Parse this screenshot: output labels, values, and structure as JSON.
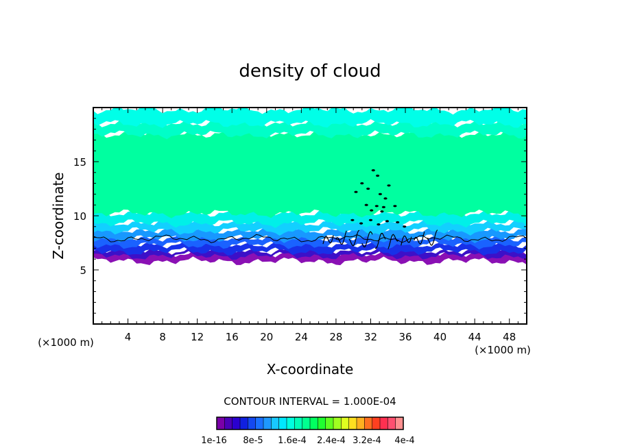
{
  "chart_data": {
    "type": "heatmap",
    "title": "density of cloud",
    "xlabel": "X-coordinate",
    "ylabel": "Z-coordinate",
    "x_unit": "(×1000 m)",
    "xlim": [
      0,
      50
    ],
    "ylim": [
      0,
      20
    ],
    "x_ticks": [
      4,
      8,
      12,
      16,
      20,
      24,
      28,
      32,
      36,
      40,
      44,
      48
    ],
    "y_ticks": [
      5,
      10,
      15
    ],
    "contour_interval_text": "CONTOUR INTERVAL = 1.000E-04",
    "legend": {
      "colors": [
        "#7a00a8",
        "#4b00b8",
        "#2a00d0",
        "#1020e0",
        "#1448f0",
        "#1a70ff",
        "#1e98ff",
        "#18c8ff",
        "#00e8ff",
        "#00ffe0",
        "#00ffb8",
        "#00ff90",
        "#00ff60",
        "#20ff30",
        "#60ff20",
        "#a0ff20",
        "#e0ff20",
        "#ffe020",
        "#ffb020",
        "#ff7020",
        "#ff4020",
        "#ff3050",
        "#ff5070",
        "#ff9090"
      ],
      "labels": [
        "1e-16",
        "8e-5",
        "1.6e-4",
        "2.4e-4",
        "3.2e-4",
        "4e-4"
      ]
    },
    "layers": [
      {
        "z_range": [
          5.8,
          6.6
        ],
        "value": "1e-16",
        "color": "#8a10b4"
      },
      {
        "z_range": [
          6.3,
          6.8
        ],
        "value": "3e-5",
        "color": "#3c10c8"
      },
      {
        "z_range": [
          6.7,
          7.4
        ],
        "value": "5e-5",
        "color": "#1830e8"
      },
      {
        "z_range": [
          7.3,
          8.0
        ],
        "value": "7e-5",
        "color": "#1a62ff"
      },
      {
        "z_range": [
          7.9,
          8.7
        ],
        "value": "9e-5",
        "color": "#1898ff"
      },
      {
        "z_range": [
          8.6,
          9.4
        ],
        "value": "1.0e-4",
        "color": "#12d0ff"
      },
      {
        "z_range": [
          9.3,
          10.3
        ],
        "value": "1.1e-4",
        "color": "#00f0e8"
      },
      {
        "z_range": [
          10.2,
          17.6
        ],
        "value": "1.3e-4",
        "color": "#00ffa0"
      },
      {
        "z_range": [
          17.5,
          18.6
        ],
        "value": "1.1e-4",
        "color": "#00ffc8"
      },
      {
        "z_range": [
          18.5,
          19.8
        ],
        "value": "1.0e-4",
        "color": "#00ffe8"
      }
    ],
    "contour_line_z": 7.9,
    "disturbance_center_x": 32.5,
    "grid": false
  }
}
